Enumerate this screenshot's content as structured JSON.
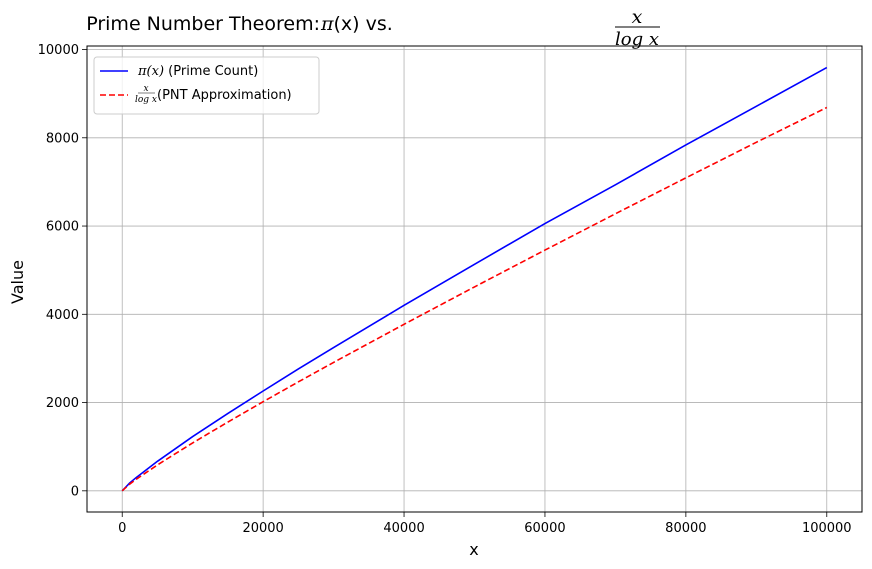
{
  "chart_data": {
    "type": "line",
    "title": {
      "prefix": "Prime Number Theorem: ",
      "pi_symbol": "π",
      "pi_arg": "(x)",
      "vs": " vs. ",
      "frac_num": "x",
      "frac_den": "log x"
    },
    "xlabel": "x",
    "ylabel": "Value",
    "xlim": [
      -5000,
      105000
    ],
    "ylim": [
      -480,
      10080
    ],
    "xticks": [
      0,
      20000,
      40000,
      60000,
      80000,
      100000
    ],
    "yticks": [
      0,
      2000,
      4000,
      6000,
      8000,
      10000
    ],
    "grid": true,
    "legend_position": "top-left",
    "series": [
      {
        "key": "pi",
        "legend_sym": "π(x)",
        "legend_text": " (Prime Count)",
        "color": "#0000ff",
        "style": "solid",
        "x": [
          0,
          1000,
          2000,
          5000,
          10000,
          15000,
          20000,
          25000,
          30000,
          40000,
          50000,
          60000,
          70000,
          80000,
          90000,
          100000
        ],
        "y": [
          0,
          168,
          303,
          669,
          1229,
          1754,
          2262,
          2762,
          3245,
          4203,
          5133,
          6057,
          6935,
          7837,
          8713,
          9592
        ]
      },
      {
        "key": "approx",
        "legend_frac_num": "x",
        "legend_frac_den": "log x",
        "legend_text": " (PNT Approximation)",
        "color": "#ff0000",
        "style": "dashed",
        "x": [
          0,
          1000,
          2000,
          5000,
          10000,
          15000,
          20000,
          25000,
          30000,
          40000,
          50000,
          60000,
          70000,
          80000,
          90000,
          100000
        ],
        "y": [
          0,
          145,
          263,
          587,
          1086,
          1559,
          2019,
          2469,
          2910,
          3774,
          4621,
          5455,
          6278,
          7092,
          7898,
          8686
        ]
      }
    ]
  }
}
